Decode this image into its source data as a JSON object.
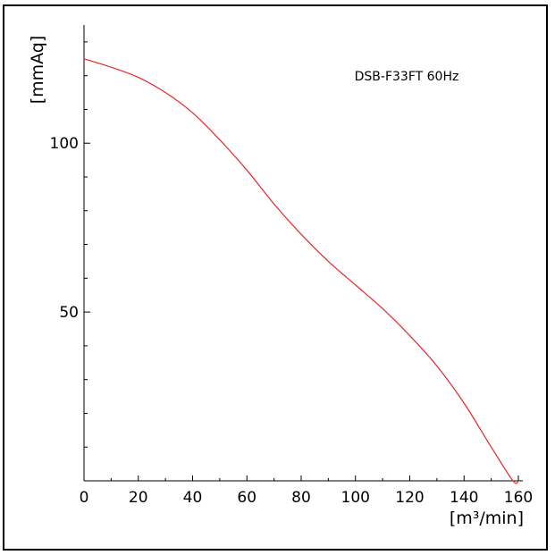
{
  "chart_data": {
    "type": "line",
    "title": "",
    "xlabel": "[m³/min]",
    "ylabel": "[mmAq]",
    "xlim": [
      0,
      160
    ],
    "ylim": [
      0,
      135
    ],
    "x_ticks": [
      0,
      20,
      40,
      60,
      80,
      100,
      120,
      140,
      160
    ],
    "x_minor_ticks": [
      10,
      30,
      50,
      70,
      90,
      110,
      130,
      150
    ],
    "y_ticks": [
      100,
      50
    ],
    "y_minor_ticks": [
      10,
      20,
      30,
      40,
      60,
      70,
      80,
      90,
      110,
      120,
      130
    ],
    "grid": false,
    "legend_position": "top-right",
    "series": [
      {
        "name": "DSB-F33FT 60Hz",
        "color": "#e8262a",
        "x": [
          0,
          10,
          20,
          30,
          40,
          50,
          60,
          70,
          80,
          90,
          100,
          110,
          120,
          130,
          140,
          150,
          158,
          160
        ],
        "y": [
          125,
          122.5,
          119.5,
          115,
          109,
          101,
          92,
          82,
          73,
          65,
          58,
          51,
          43,
          34,
          23,
          10,
          0,
          0
        ]
      }
    ]
  }
}
